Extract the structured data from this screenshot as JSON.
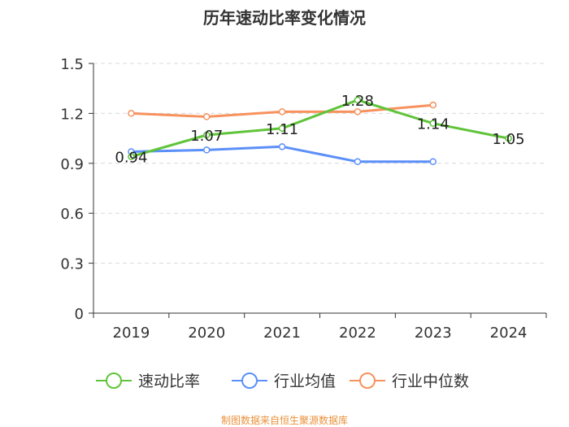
{
  "chart_data": {
    "type": "line",
    "title": "历年速动比率变化情况",
    "categories": [
      "2019",
      "2020",
      "2021",
      "2022",
      "2023",
      "2024"
    ],
    "ylim": [
      0,
      1.5
    ],
    "yticks": [
      "0",
      "0.3",
      "0.6",
      "0.9",
      "1.2",
      "1.5"
    ],
    "grid": true,
    "legend_position": "bottom",
    "series": [
      {
        "name": "速动比率",
        "color": "#5fc43a",
        "values": [
          0.94,
          1.07,
          1.11,
          1.28,
          1.14,
          1.05
        ],
        "labels": [
          "0.94",
          "1.07",
          "1.11",
          "1.28",
          "1.14",
          "1.05"
        ]
      },
      {
        "name": "行业均值",
        "color": "#5b8ff9",
        "values": [
          0.97,
          0.98,
          1.0,
          0.91,
          0.91,
          null
        ]
      },
      {
        "name": "行业中位数",
        "color": "#f7925e",
        "values": [
          1.2,
          1.18,
          1.21,
          1.21,
          1.25,
          null
        ]
      }
    ]
  },
  "source_text": "制图数据来自恒生聚源数据库",
  "source_color": "#e9913a"
}
